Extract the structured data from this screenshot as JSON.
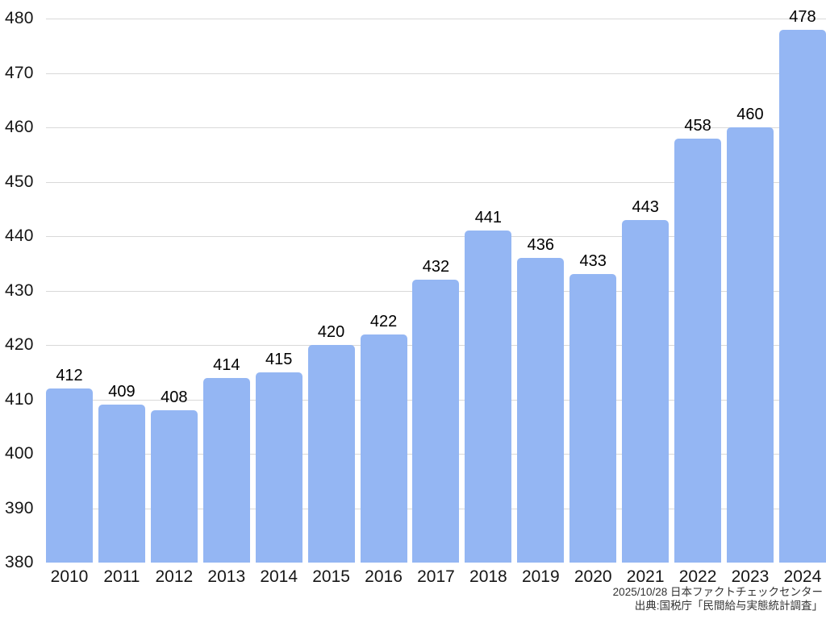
{
  "chart_data": {
    "type": "bar",
    "title": "",
    "xlabel": "",
    "ylabel": "",
    "categories": [
      "2010",
      "2011",
      "2012",
      "2013",
      "2014",
      "2015",
      "2016",
      "2017",
      "2018",
      "2019",
      "2020",
      "2021",
      "2022",
      "2023",
      "2024"
    ],
    "values": [
      412,
      409,
      408,
      414,
      415,
      420,
      422,
      432,
      441,
      436,
      433,
      443,
      458,
      460,
      478
    ],
    "ylim": [
      380,
      480
    ],
    "ytick_step": 10,
    "ytick_labels": [
      "380",
      "390",
      "400",
      "410",
      "420",
      "430",
      "440",
      "450",
      "460",
      "470",
      "480"
    ],
    "grid": "horizontal-only",
    "legend": "none",
    "value_labels_shown": true,
    "bar_color": "#94b6f3",
    "gridline_color": "#d9d9d9",
    "label_color": "#161616"
  },
  "footer": {
    "line1": "2025/10/28 日本ファクトチェックセンター",
    "line2": "出典:国税庁「民間給与実態統計調査」"
  }
}
